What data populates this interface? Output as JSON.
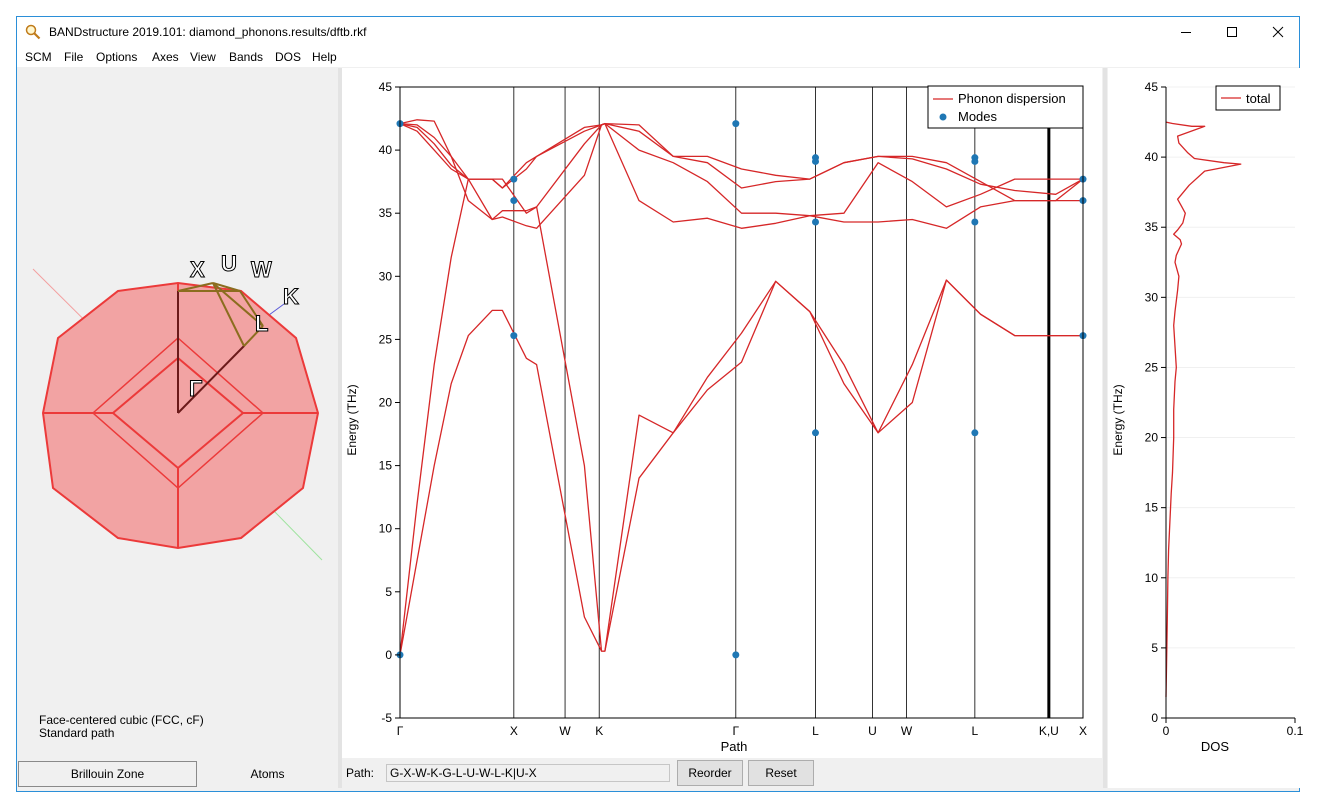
{
  "window": {
    "title": "BANDstructure 2019.101: diamond_phonons.results/dftb.rkf",
    "controls": [
      "minimize",
      "maximize",
      "close"
    ]
  },
  "menu": [
    "SCM",
    "File",
    "Options",
    "Axes",
    "View",
    "Bands",
    "DOS",
    "Help"
  ],
  "brillouin": {
    "labels": [
      "X",
      "U",
      "W",
      "K",
      "L",
      "Γ"
    ],
    "lattice": "Face-centered cubic (FCC, cF)",
    "path_type": "Standard path"
  },
  "left_tabs": [
    "Brillouin Zone",
    "Atoms"
  ],
  "pathbar": {
    "label": "Path:",
    "value": "G-X-W-K-G-L-U-W-L-K|U-X",
    "reorder": "Reorder",
    "reset": "Reset"
  },
  "colors": {
    "band": "#d62728",
    "mode": "#1f77b4",
    "bz_fill": "#f2a3a3",
    "bz_edge": "#ec3a3a",
    "path": "#8b6d1f"
  },
  "chart_data": [
    {
      "type": "line",
      "xlabel": "Path",
      "ylabel": "Energy (THz)",
      "ylim": [
        -5,
        45
      ],
      "yticks": [
        -5,
        0,
        5,
        10,
        15,
        20,
        25,
        30,
        35,
        40,
        45
      ],
      "xticks": [
        "Γ",
        "X",
        "W",
        "K",
        "Γ",
        "L",
        "U",
        "W",
        "L",
        "K,U",
        "X"
      ],
      "legend": [
        "Phonon dispersion",
        "Modes"
      ],
      "legend_position": "top-right",
      "series": [
        {
          "name": "Phonon dispersion",
          "x": [
            0.0,
            0.25,
            0.5,
            0.75,
            1.0,
            1.35,
            1.5,
            1.85,
            2.0,
            2.7,
            2.95,
            3.0,
            3.5,
            4.0,
            4.5,
            5.0,
            5.5,
            6.0,
            6.5,
            7.0,
            7.5,
            8.0,
            8.5,
            9.0,
            9.6,
            10.0
          ],
          "bands": [
            [
              0.0,
              7.5,
              15.0,
              21.5,
              25.3,
              27.3,
              27.3,
              23.5,
              23.0,
              3.0,
              0.3,
              0.3,
              14.0,
              17.6,
              21.0,
              23.2,
              29.6,
              27.2,
              21.5,
              17.6,
              20.0,
              29.7,
              27.0,
              25.3,
              25.3,
              25.3
            ],
            [
              0.0,
              12.0,
              23.0,
              31.5,
              37.7,
              37.7,
              37.7,
              35.0,
              35.5,
              15.0,
              0.3,
              0.3,
              19.0,
              17.6,
              22.0,
              25.5,
              29.6,
              27.2,
              23.0,
              17.6,
              23.0,
              29.7,
              27.0,
              25.3,
              25.3,
              25.3
            ],
            [
              42.1,
              42.4,
              42.3,
              39.5,
              36.0,
              34.5,
              34.7,
              34.0,
              33.8,
              38.0,
              42.0,
              42.1,
              36.0,
              34.3,
              34.6,
              33.8,
              34.2,
              34.8,
              34.3,
              34.3,
              34.5,
              33.8,
              35.5,
              36.0,
              36.0,
              36.0
            ],
            [
              42.1,
              41.5,
              40.0,
              38.5,
              37.7,
              34.5,
              35.2,
              35.2,
              35.5,
              40.5,
              42.0,
              42.1,
              40.0,
              39.0,
              37.5,
              35.0,
              35.0,
              34.8,
              35.0,
              39.0,
              37.5,
              35.5,
              36.5,
              37.7,
              37.7,
              37.7
            ],
            [
              42.1,
              41.8,
              40.5,
              38.8,
              37.7,
              37.7,
              37.0,
              38.5,
              39.5,
              41.5,
              42.0,
              42.1,
              41.5,
              39.5,
              39.0,
              37.0,
              37.5,
              37.7,
              39.0,
              39.5,
              39.3,
              38.5,
              37.3,
              36.8,
              36.5,
              37.7
            ],
            [
              42.1,
              42.0,
              41.0,
              39.5,
              37.7,
              37.7,
              37.0,
              39.0,
              39.5,
              41.8,
              42.0,
              42.1,
              42.0,
              39.5,
              39.5,
              38.5,
              38.0,
              37.7,
              39.0,
              39.5,
              39.5,
              39.0,
              37.5,
              36.0,
              36.0,
              37.7
            ]
          ]
        }
      ],
      "modes": [
        {
          "x": "Γ",
          "values": [
            0.0,
            42.1
          ]
        },
        {
          "x": "X",
          "values": [
            37.7,
            36.0,
            25.3
          ]
        },
        {
          "x": "Γ",
          "values": [
            0.0,
            42.1
          ]
        },
        {
          "x": "L",
          "values": [
            39.4,
            39.1,
            34.3,
            17.6
          ]
        },
        {
          "x": "L",
          "values": [
            39.4,
            39.1,
            34.3,
            17.6
          ]
        },
        {
          "x": "X",
          "values": [
            37.7,
            36.0,
            25.3
          ]
        }
      ]
    },
    {
      "type": "line",
      "xlabel": "DOS",
      "ylabel": "Energy (THz)",
      "ylim": [
        0,
        45
      ],
      "xlim": [
        0,
        0.1
      ],
      "yticks": [
        0,
        5,
        10,
        15,
        20,
        25,
        30,
        35,
        40,
        45
      ],
      "xticks": [
        "0",
        "0.1"
      ],
      "legend": [
        "total"
      ],
      "legend_position": "top-right",
      "series": [
        {
          "name": "total",
          "x": [
            0.0,
            0.0005,
            0.001,
            0.0015,
            0.002,
            0.003,
            0.004,
            0.005,
            0.006,
            0.006,
            0.007,
            0.008,
            0.007,
            0.006,
            0.007,
            0.009,
            0.01,
            0.007,
            0.008,
            0.012,
            0.011,
            0.006,
            0.009,
            0.013,
            0.015,
            0.012,
            0.009,
            0.018,
            0.03,
            0.058,
            0.045,
            0.022,
            0.017,
            0.01,
            0.009,
            0.03,
            0.02,
            0.005,
            0.0
          ],
          "y": [
            1.5,
            4.0,
            7.0,
            10.0,
            12.0,
            14.0,
            16.0,
            17.5,
            20.0,
            22.0,
            24.0,
            25.0,
            26.5,
            28.0,
            29.0,
            30.5,
            31.5,
            32.5,
            33.0,
            33.8,
            34.1,
            34.5,
            34.8,
            35.3,
            36.0,
            36.5,
            37.0,
            38.0,
            39.0,
            39.5,
            39.6,
            39.9,
            40.3,
            41.0,
            41.5,
            42.2,
            42.2,
            42.4,
            42.5
          ]
        }
      ]
    }
  ]
}
